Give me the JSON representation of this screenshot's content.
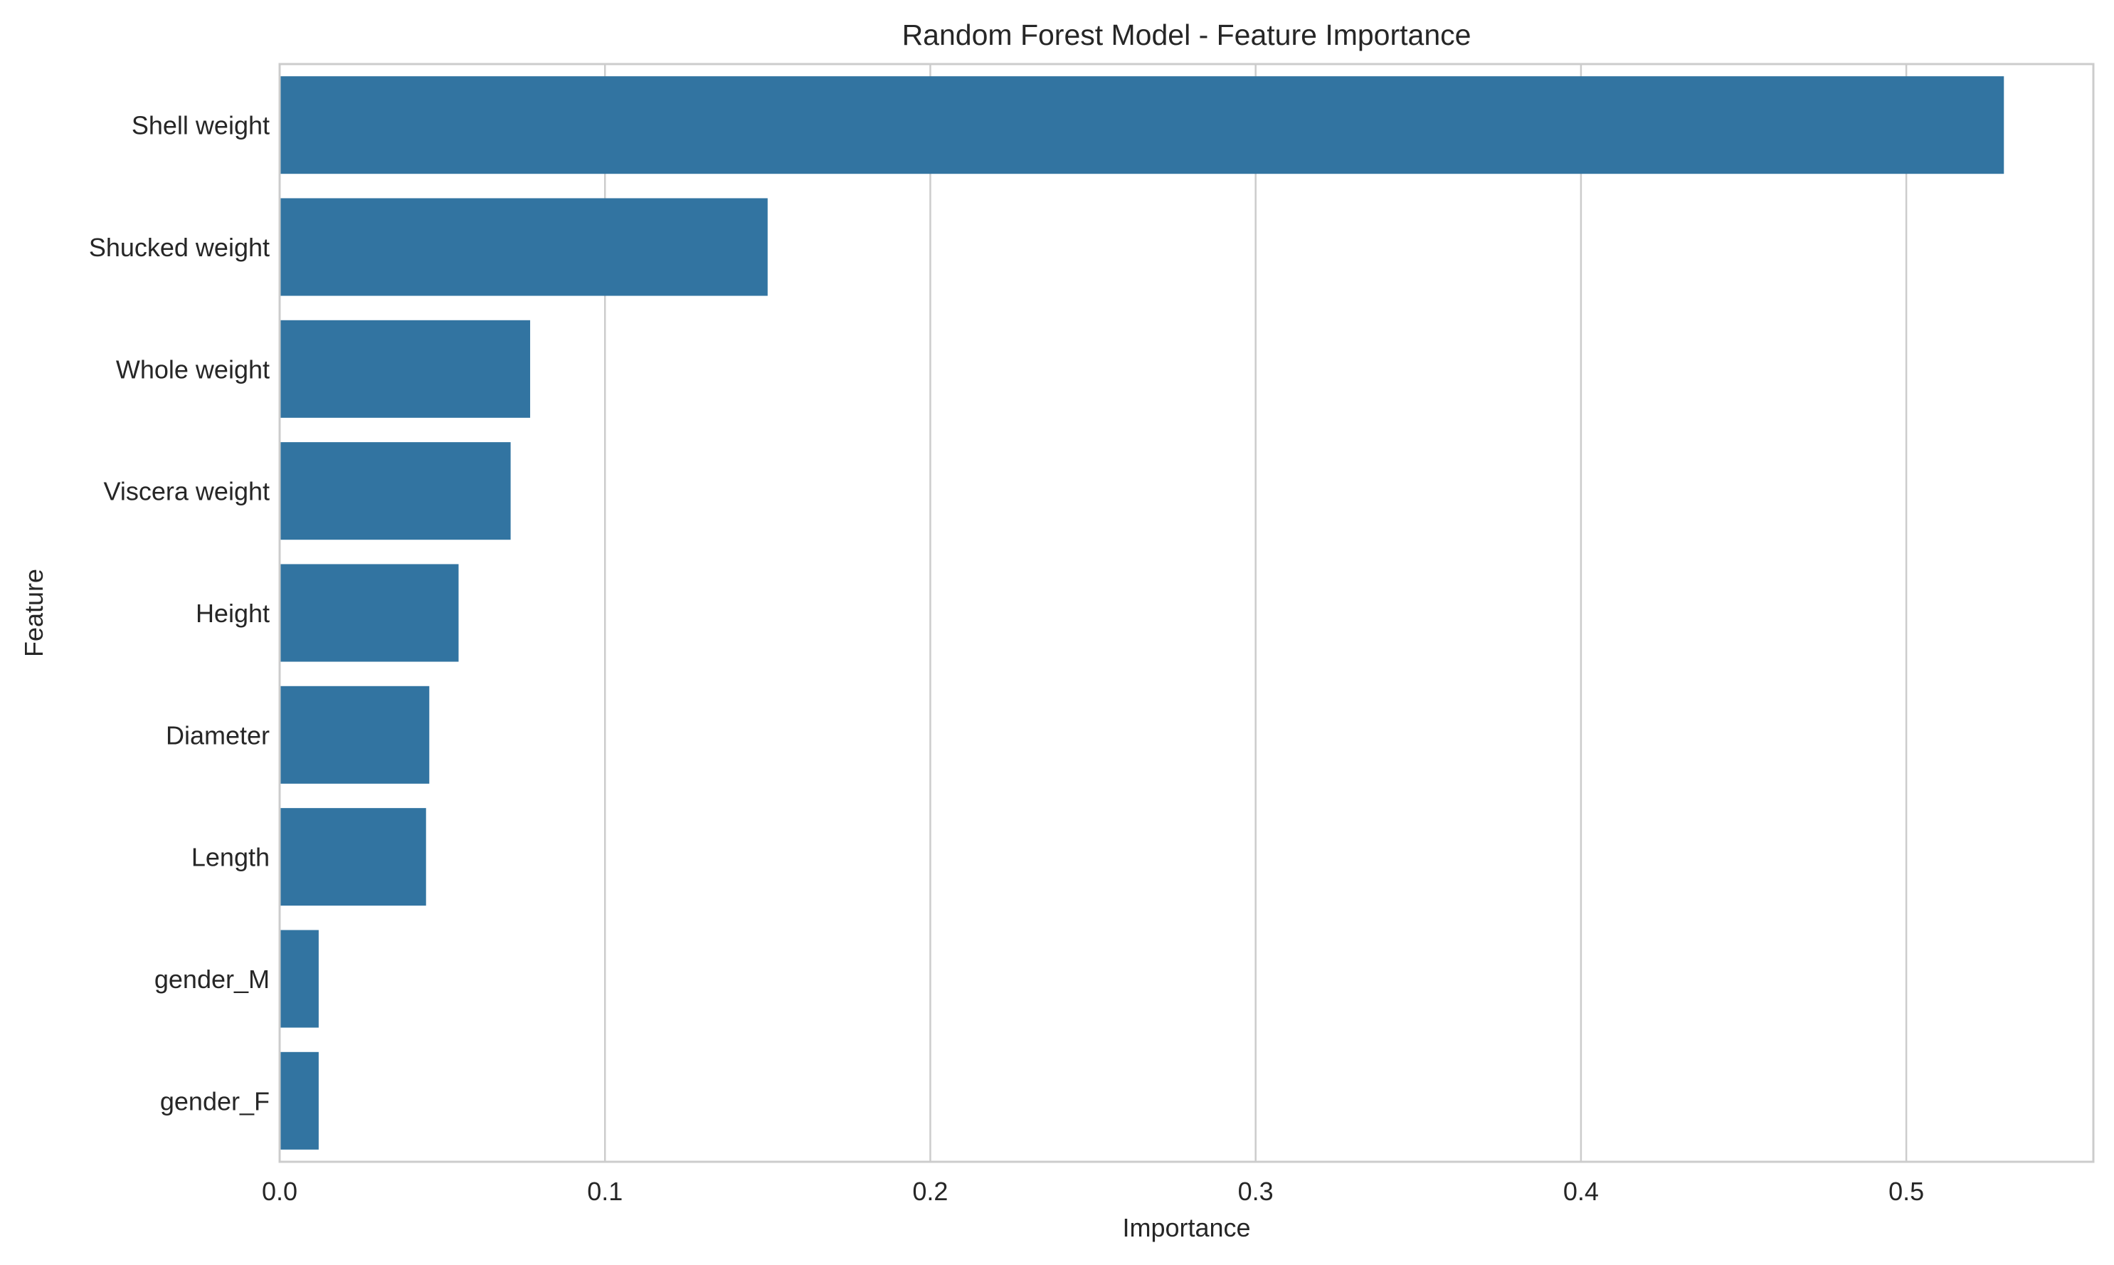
{
  "chart_data": {
    "type": "bar",
    "orientation": "horizontal",
    "title": "Random Forest Model - Feature Importance",
    "xlabel": "Importance",
    "ylabel": "Feature",
    "categories": [
      "Shell weight",
      "Shucked weight",
      "Whole weight",
      "Viscera weight",
      "Height",
      "Diameter",
      "Length",
      "gender_M",
      "gender_F"
    ],
    "values": [
      0.53,
      0.15,
      0.077,
      0.071,
      0.055,
      0.046,
      0.045,
      0.012,
      0.012
    ],
    "xlim": [
      0,
      0.5575
    ],
    "xticks": [
      0.0,
      0.1,
      0.2,
      0.3,
      0.4,
      0.5
    ],
    "xtick_labels": [
      "0.0",
      "0.1",
      "0.2",
      "0.3",
      "0.4",
      "0.5"
    ],
    "bar_color": "#3274a1",
    "grid": true,
    "legend": false
  }
}
